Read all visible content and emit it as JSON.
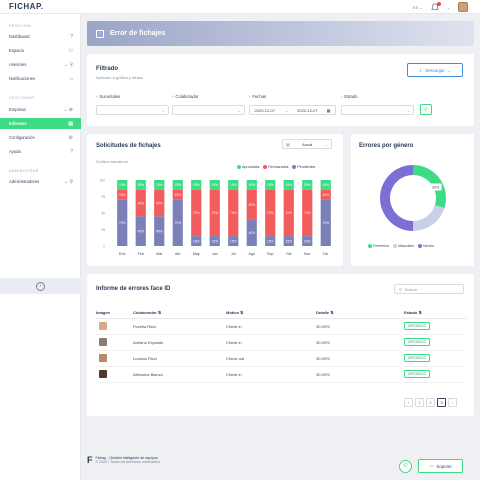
{
  "app": {
    "logo": "FICHAP.",
    "lang": "ES"
  },
  "sidebar": {
    "sections": [
      {
        "label": "PRINCIPAL",
        "items": [
          {
            "label": "Dashboard",
            "icon": "question-icon"
          },
          {
            "label": "Espacio",
            "icon": "users-icon"
          },
          {
            "label": "Asesores",
            "icon": "user-add-icon"
          },
          {
            "label": "Notificaciones",
            "icon": "lock-icon"
          }
        ]
      },
      {
        "label": "GESTIONAR",
        "items": [
          {
            "label": "Empresa",
            "icon": "add-icon"
          },
          {
            "label": "Informes",
            "icon": "chart-icon"
          },
          {
            "label": "Configuración",
            "icon": "gear-icon"
          },
          {
            "label": "Ayuda",
            "icon": "help-icon"
          }
        ]
      },
      {
        "label": "ADMINISTRAR",
        "items": [
          {
            "label": "Administradores",
            "icon": "user-add-icon"
          }
        ]
      }
    ],
    "active": "Informes"
  },
  "banner": {
    "title": "Error de fichajes"
  },
  "filter": {
    "title": "Filtrado",
    "subtitle": "Aplicado a gráfica y tablas",
    "download_label": "Descargar",
    "sucursales_label": "Sucursales",
    "colaborador_label": "Colaborador",
    "fechas_label": "Fechas",
    "estado_label": "Estado",
    "date_from": "2020-12-07",
    "date_sep": "→",
    "date_to": "2020-12-07"
  },
  "solicitudes": {
    "title": "Solicitudes de fichajes",
    "period": "Anual",
    "subtitle": "Gráfico interanual"
  },
  "chart_data": [
    {
      "type": "bar",
      "stacked": true,
      "title": "Solicitudes de fichajes",
      "subtitle": "Gráfico interanual",
      "categories": [
        "Ene",
        "Feb",
        "Mar",
        "Abr",
        "May",
        "Jun",
        "Jul",
        "Ago",
        "Sep",
        "Oct",
        "Nov",
        "Dic"
      ],
      "series": [
        {
          "name": "Pendientes",
          "color": "#7b80b8",
          "values": [
            70,
            45,
            45,
            70,
            15,
            15,
            15,
            40,
            15,
            15,
            15,
            70
          ]
        },
        {
          "name": "Rechazadas",
          "color": "#f25c5c",
          "values": [
            15,
            40,
            40,
            15,
            70,
            70,
            70,
            45,
            70,
            70,
            70,
            15
          ]
        },
        {
          "name": "Aprobadas",
          "color": "#3ddc84",
          "values": [
            15,
            15,
            15,
            15,
            15,
            15,
            15,
            15,
            15,
            15,
            15,
            15
          ]
        }
      ],
      "ylim": [
        0,
        100
      ],
      "yticks": [
        0,
        25,
        50,
        75,
        100
      ],
      "legend": "top-right"
    },
    {
      "type": "pie",
      "title": "Errores por género",
      "categories": [
        "Femenino",
        "Masculino",
        "Neutro"
      ],
      "values": [
        30,
        20,
        50
      ],
      "colors": [
        "#3ddc84",
        "#c8cfe6",
        "#7b6fd6"
      ],
      "label_shown": "30%",
      "legend": "bottom"
    }
  ],
  "table": {
    "title": "Informe de errores face ID",
    "search_placeholder": "Buscar",
    "headers": [
      "Imagen",
      "Colaborador",
      "Motivo",
      "Detalle",
      "Estado"
    ],
    "rows": [
      {
        "colaborador": "Fiorella Ricci",
        "motivo": "Check in",
        "detalle": "30.00%",
        "estado": "APROBADO"
      },
      {
        "colaborador": "Adriano Expósito",
        "motivo": "Check in",
        "detalle": "30.00%",
        "estado": "APROBADO"
      },
      {
        "colaborador": "Luciano Ricci",
        "motivo": "Check out",
        "detalle": "30.00%",
        "estado": "APROBADO"
      },
      {
        "colaborador": "Alfonsina Blanco",
        "motivo": "Check in",
        "detalle": "30.00%",
        "estado": "APROBADO"
      }
    ],
    "pagination": [
      "‹",
      "1",
      "2",
      "3",
      "›"
    ],
    "current_page": "3"
  },
  "footer": {
    "line1": "Fichap - Gestión inteligente de equipos",
    "line2": "© 2020 / Todos los derechos reservados",
    "support_label": "Soporte"
  }
}
